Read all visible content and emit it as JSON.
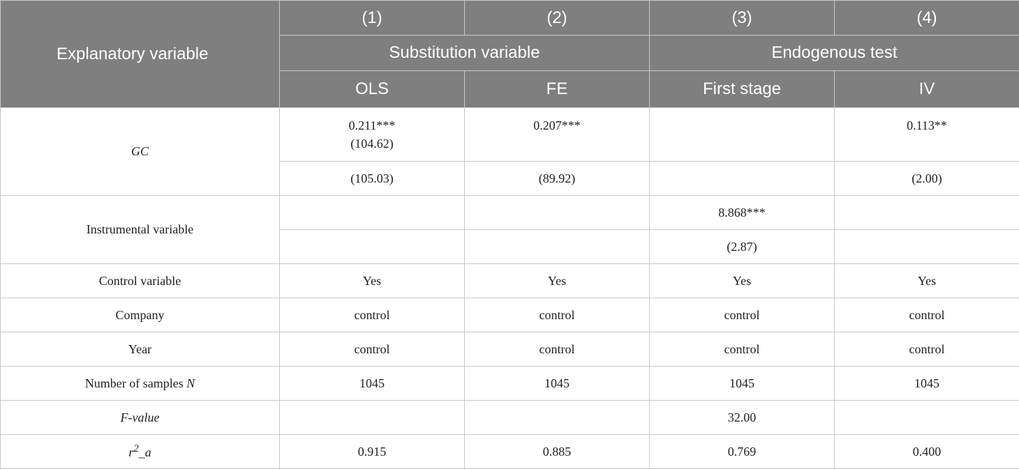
{
  "header": {
    "col_numbers": [
      "(1)",
      "(2)",
      "(3)",
      "(4)"
    ],
    "row_label": "Explanatory variable",
    "groups": [
      "Substitution variable",
      "Endogenous test"
    ],
    "methods": [
      "OLS",
      "FE",
      "First stage",
      "IV"
    ]
  },
  "rows": {
    "gc": {
      "label": "GC",
      "coef": [
        "0.211***",
        "0.207***",
        "",
        "0.113**"
      ],
      "coef_extra": [
        "(104.62)",
        "",
        "",
        ""
      ],
      "t": [
        "(105.03)",
        "(89.92)",
        "",
        "(2.00)"
      ]
    },
    "instrument": {
      "label": "Instrumental variable",
      "coef": [
        "",
        "",
        "8.868***",
        ""
      ],
      "t": [
        "",
        "",
        "(2.87)",
        ""
      ]
    },
    "control": {
      "label": "Control variable",
      "values": [
        "Yes",
        "Yes",
        "Yes",
        "Yes"
      ]
    },
    "company": {
      "label": "Company",
      "values": [
        "control",
        "control",
        "control",
        "control"
      ]
    },
    "year": {
      "label": "Year",
      "values": [
        "control",
        "control",
        "control",
        "control"
      ]
    },
    "samples": {
      "label": "Number of samples ",
      "label_var": "N",
      "values": [
        "1045",
        "1045",
        "1045",
        "1045"
      ]
    },
    "fvalue": {
      "label": "F-value",
      "values": [
        "",
        "",
        "32.00",
        ""
      ]
    },
    "r2a": {
      "label_base": "r",
      "label_sup": "2",
      "label_tail": "_a",
      "values": [
        "0.915",
        "0.885",
        "0.769",
        "0.400"
      ]
    }
  }
}
